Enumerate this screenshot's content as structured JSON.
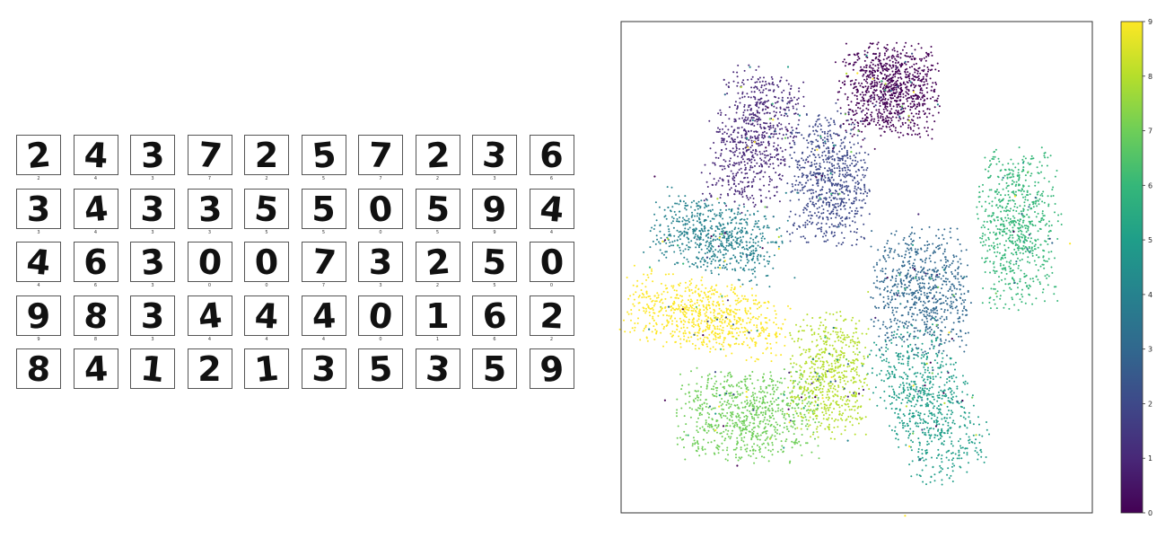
{
  "digits": {
    "rows": [
      [
        "2",
        "4",
        "3",
        "7",
        "2",
        "5",
        "7",
        "2",
        "3",
        "6"
      ],
      [
        "3",
        "4",
        "3",
        "3",
        "5",
        "5",
        "0",
        "5",
        "9",
        "4"
      ],
      [
        "4",
        "6",
        "3",
        "0",
        "0",
        "7",
        "3",
        "2",
        "5",
        "0"
      ],
      [
        "9",
        "8",
        "3",
        "4",
        "4",
        "4",
        "0",
        "1",
        "6",
        "2"
      ],
      [
        "8",
        "4",
        "1",
        "2",
        "1",
        "3",
        "5",
        "3",
        "5",
        "9"
      ]
    ],
    "captions": [
      [
        "2",
        "4",
        "3",
        "7",
        "2",
        "5",
        "7",
        "2",
        "3",
        "6"
      ],
      [
        "3",
        "4",
        "3",
        "3",
        "5",
        "5",
        "0",
        "5",
        "9",
        "4"
      ],
      [
        "4",
        "6",
        "3",
        "0",
        "0",
        "7",
        "3",
        "2",
        "5",
        "0"
      ],
      [
        "9",
        "8",
        "3",
        "4",
        "4",
        "4",
        "0",
        "1",
        "6",
        "2"
      ]
    ]
  },
  "chart_data": {
    "type": "scatter",
    "title": "",
    "xlabel": "",
    "ylabel": "",
    "grid": false,
    "axis_ticks": false,
    "colormap": "viridis",
    "colorbar": {
      "range": [
        0,
        9
      ],
      "ticks": [
        "0",
        "1",
        "2",
        "3",
        "4",
        "5",
        "6",
        "7",
        "8",
        "9"
      ],
      "position": "right"
    },
    "colors": [
      "#440154",
      "#482878",
      "#3e4989",
      "#31688e",
      "#26828e",
      "#1f9e89",
      "#35b779",
      "#6ece58",
      "#b5de2b",
      "#fde725"
    ],
    "xlim": [
      0,
      100
    ],
    "ylim": [
      0,
      100
    ],
    "clusters": [
      {
        "label": 0,
        "center": [
          57,
          86
        ],
        "spread": [
          10,
          9
        ],
        "angle": 0,
        "points": 900
      },
      {
        "label": 1,
        "center": [
          28,
          76
        ],
        "spread": [
          8,
          14
        ],
        "angle": -15,
        "points": 700
      },
      {
        "label": 2,
        "center": [
          44,
          68
        ],
        "spread": [
          8,
          13
        ],
        "angle": 0,
        "points": 700
      },
      {
        "label": 3,
        "center": [
          64,
          45
        ],
        "spread": [
          10,
          12
        ],
        "angle": 0,
        "points": 700
      },
      {
        "label": 4,
        "center": [
          20,
          56
        ],
        "spread": [
          13,
          7
        ],
        "angle": -15,
        "points": 650
      },
      {
        "label": 5,
        "center": [
          65,
          22
        ],
        "spread": [
          9,
          15
        ],
        "angle": 25,
        "points": 700
      },
      {
        "label": 6,
        "center": [
          84,
          58
        ],
        "spread": [
          8,
          15
        ],
        "angle": 0,
        "points": 700
      },
      {
        "label": 7,
        "center": [
          27,
          20
        ],
        "spread": [
          14,
          9
        ],
        "angle": 0,
        "points": 750
      },
      {
        "label": 8,
        "center": [
          44,
          28
        ],
        "spread": [
          8,
          12
        ],
        "angle": 0,
        "points": 600
      },
      {
        "label": 9,
        "center": [
          18,
          40
        ],
        "spread": [
          16,
          7
        ],
        "angle": -10,
        "points": 750
      }
    ]
  }
}
